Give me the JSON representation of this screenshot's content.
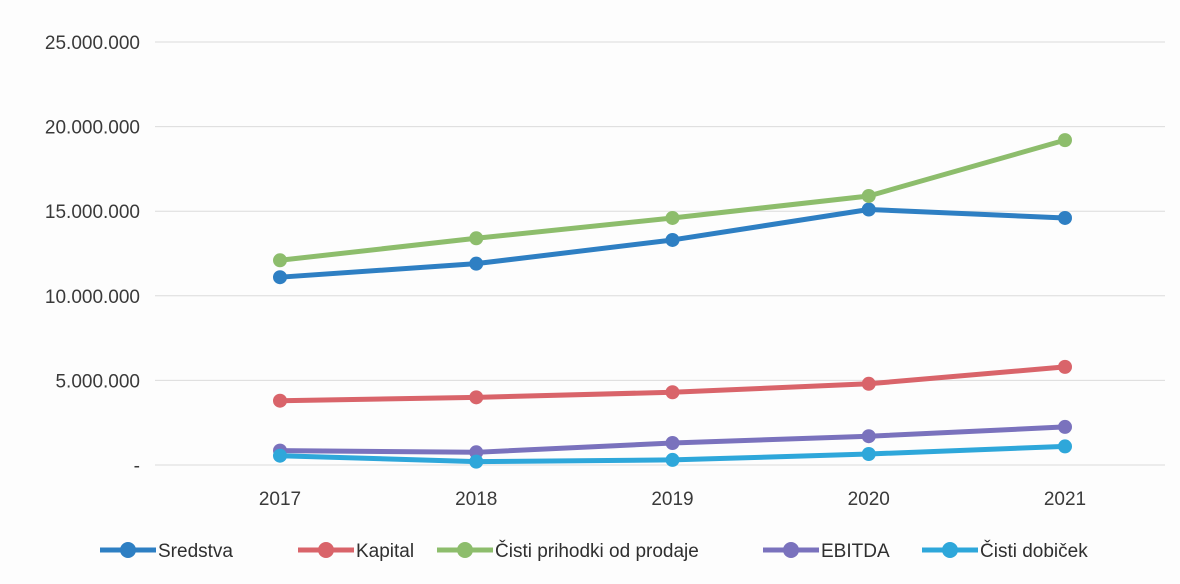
{
  "chart_data": {
    "type": "line",
    "title": "",
    "xlabel": "",
    "ylabel": "",
    "categories": [
      "2017",
      "2018",
      "2019",
      "2020",
      "2021"
    ],
    "ylim": [
      0,
      25000000
    ],
    "yticks": [
      {
        "value": 0,
        "label": "-"
      },
      {
        "value": 5000000,
        "label": "5.000.000"
      },
      {
        "value": 10000000,
        "label": "10.000.000"
      },
      {
        "value": 15000000,
        "label": "15.000.000"
      },
      {
        "value": 20000000,
        "label": "20.000.000"
      },
      {
        "value": 25000000,
        "label": "25.000.000"
      }
    ],
    "grid": true,
    "legend_position": "bottom",
    "series": [
      {
        "name": "Sredstva",
        "color": "#2e7fc3",
        "values": [
          11100000,
          11900000,
          13300000,
          15100000,
          14600000
        ]
      },
      {
        "name": "Kapital",
        "color": "#d9646a",
        "values": [
          3800000,
          4000000,
          4300000,
          4800000,
          5800000
        ]
      },
      {
        "name": "Čisti prihodki od prodaje",
        "color": "#8dbd6c",
        "values": [
          12100000,
          13400000,
          14600000,
          15900000,
          19200000
        ]
      },
      {
        "name": "EBITDA",
        "color": "#7a72bd",
        "values": [
          850000,
          750000,
          1300000,
          1700000,
          2250000
        ]
      },
      {
        "name": "Čisti dobiček",
        "color": "#2ea7da",
        "values": [
          550000,
          200000,
          300000,
          650000,
          1100000
        ]
      }
    ]
  }
}
